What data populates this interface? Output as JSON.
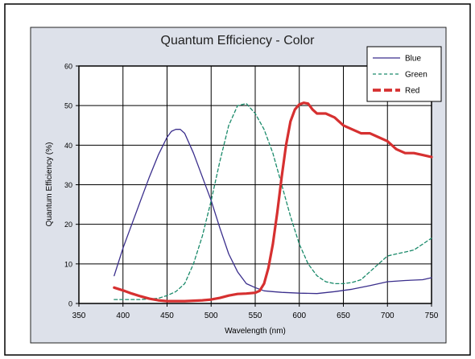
{
  "chart_data": {
    "type": "line",
    "title": "Quantum Efficiency - Color",
    "xlabel": "Wavelength (nm)",
    "ylabel": "Quantum Efficiency (%)",
    "xlim": [
      350,
      750
    ],
    "ylim": [
      0,
      60
    ],
    "xticks": [
      350,
      400,
      450,
      500,
      550,
      600,
      650,
      700,
      750
    ],
    "yticks": [
      0,
      10,
      20,
      30,
      40,
      50,
      60
    ],
    "grid": true,
    "legend_position": "top-right",
    "colors": {
      "background": "#dde1ea",
      "plot": "#ffffff",
      "frame": "#000000"
    },
    "series": [
      {
        "name": "Blue",
        "color": "#3a2e8c",
        "style": "solid",
        "x": [
          390,
          400,
          410,
          420,
          430,
          440,
          450,
          455,
          460,
          465,
          470,
          480,
          490,
          500,
          510,
          520,
          530,
          540,
          550,
          560,
          570,
          580,
          600,
          620,
          640,
          660,
          680,
          700,
          720,
          740,
          750
        ],
        "y": [
          7,
          14,
          20,
          26,
          32,
          37.5,
          42,
          43.5,
          44,
          44,
          43,
          38,
          32,
          26,
          19,
          12.5,
          8,
          5,
          4,
          3.2,
          3,
          2.8,
          2.6,
          2.5,
          3,
          3.6,
          4.5,
          5.5,
          5.8,
          6,
          6.5
        ]
      },
      {
        "name": "Green",
        "color": "#1a8a6a",
        "style": "dashed",
        "x": [
          390,
          420,
          440,
          450,
          460,
          470,
          480,
          490,
          500,
          510,
          520,
          530,
          540,
          550,
          560,
          570,
          580,
          590,
          600,
          610,
          620,
          630,
          640,
          650,
          660,
          670,
          680,
          690,
          700,
          710,
          720,
          730,
          740,
          750
        ],
        "y": [
          1,
          1,
          1.3,
          2,
          3,
          5,
          10,
          17,
          26,
          36,
          45,
          50,
          50.5,
          48,
          44,
          38,
          30,
          22,
          15,
          10,
          7,
          5.5,
          5,
          5,
          5.3,
          6,
          8,
          10,
          12,
          12.5,
          13,
          13.5,
          15,
          16.5
        ]
      },
      {
        "name": "Red",
        "color": "#d63030",
        "style": "thick",
        "x": [
          390,
          400,
          410,
          420,
          430,
          440,
          450,
          460,
          470,
          480,
          490,
          500,
          510,
          520,
          530,
          540,
          550,
          555,
          560,
          565,
          570,
          575,
          580,
          585,
          590,
          595,
          600,
          605,
          610,
          615,
          620,
          630,
          640,
          650,
          660,
          670,
          680,
          690,
          700,
          710,
          720,
          730,
          740,
          750
        ],
        "y": [
          4,
          3.3,
          2.5,
          1.8,
          1.2,
          0.8,
          0.6,
          0.6,
          0.6,
          0.7,
          0.8,
          1,
          1.4,
          2,
          2.4,
          2.5,
          2.7,
          3.2,
          5,
          9,
          15,
          23,
          32,
          40,
          46,
          49,
          50.3,
          50.7,
          50.5,
          49,
          48,
          48,
          47,
          45,
          44,
          43,
          43,
          42,
          41,
          39,
          38,
          38,
          37.5,
          37
        ]
      }
    ]
  }
}
